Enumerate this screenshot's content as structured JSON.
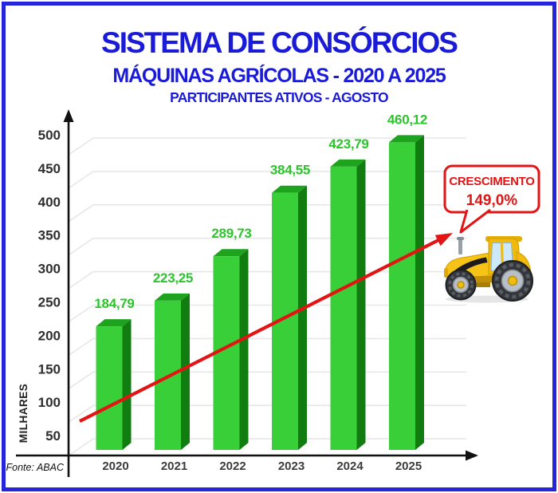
{
  "header": {
    "title": "SISTEMA DE CONSÓRCIOS",
    "subtitle": "MÁQUINAS AGRÍCOLAS - 2020 A 2025",
    "note": "PARTICIPANTES ATIVOS - AGOSTO"
  },
  "source": "Fonte: ABAC",
  "callout": {
    "line1": "CRESCIMENTO",
    "line2": "149,0%"
  },
  "colors": {
    "title_blue": "#1a1ad9",
    "border_blue": "#2525dd",
    "bar_front": "#38cf38",
    "bar_top": "#1da31d",
    "bar_side": "#117d11",
    "value_green": "#2bc52b",
    "red": "#e31414",
    "axis": "#111111",
    "grid": "#e7e7e7"
  },
  "chart_data": {
    "type": "bar",
    "title": "SISTEMA DE CONSÓRCIOS",
    "subtitle": "MÁQUINAS AGRÍCOLAS - 2020 A 2025",
    "note": "PARTICIPANTES ATIVOS - AGOSTO",
    "categories": [
      "2020",
      "2021",
      "2022",
      "2023",
      "2024",
      "2025"
    ],
    "values": [
      184.79,
      223.25,
      289.73,
      384.55,
      423.79,
      460.12
    ],
    "value_labels": [
      "184,79",
      "223,25",
      "289,73",
      "384,55",
      "423,79",
      "460,12"
    ],
    "ylabel": "MILHARES",
    "yticks": [
      50,
      100,
      150,
      200,
      250,
      300,
      350,
      400,
      450,
      500
    ],
    "ylim": [
      0,
      520
    ],
    "grid": true,
    "bar_style": "3d-green",
    "annotation": "CRESCIMENTO 149,0%",
    "trendline": "red rising arrow",
    "legend": "none",
    "source": "Fonte: ABAC"
  }
}
